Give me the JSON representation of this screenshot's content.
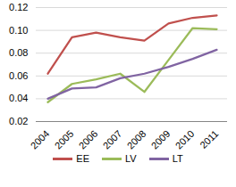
{
  "chart_data": {
    "type": "line",
    "categories": [
      "2004",
      "2005",
      "2006",
      "2007",
      "2008",
      "2009",
      "2010",
      "2011"
    ],
    "series": [
      {
        "name": "EE",
        "color": "#c0504d",
        "values": [
          0.062,
          0.094,
          0.098,
          0.094,
          0.091,
          0.106,
          0.111,
          0.113
        ]
      },
      {
        "name": "LV",
        "color": "#9bbb59",
        "values": [
          0.037,
          0.053,
          0.057,
          0.062,
          0.046,
          0.074,
          0.102,
          0.101
        ]
      },
      {
        "name": "LT",
        "color": "#8064a2",
        "values": [
          0.04,
          0.049,
          0.05,
          0.058,
          0.062,
          0.068,
          0.075,
          0.083
        ]
      }
    ],
    "ylim": [
      0.02,
      0.12
    ],
    "yticks": [
      0.02,
      0.04,
      0.06,
      0.08,
      {
        "value": 0.1,
        "label": "0.10"
      },
      0.12
    ],
    "grid": true,
    "legend": "bottom"
  }
}
